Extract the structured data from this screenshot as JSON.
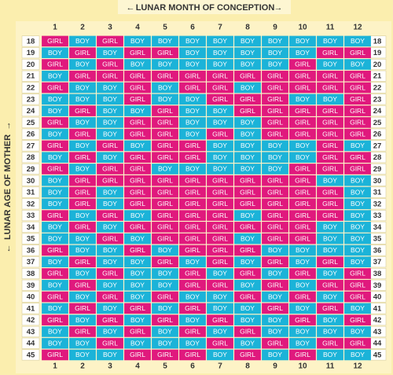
{
  "header": {
    "title": "LUNAR MONTH OF CONCEPTION"
  },
  "side_label": "LUNAR AGE OF MOTHER",
  "cell_colors": {
    "GIRL": "#e0197d",
    "BOY": "#1bb3d8"
  },
  "columns": [
    "1",
    "2",
    "3",
    "4",
    "5",
    "6",
    "7",
    "8",
    "9",
    "10",
    "11",
    "12"
  ],
  "rows": [
    {
      "age": "18",
      "cells": [
        "GIRL",
        "BOY",
        "GIRL",
        "BOY",
        "BOY",
        "BOY",
        "BOY",
        "BOY",
        "BOY",
        "BOY",
        "BOY",
        "BOY"
      ]
    },
    {
      "age": "19",
      "cells": [
        "BOY",
        "GIRL",
        "BOY",
        "GIRL",
        "GIRL",
        "BOY",
        "BOY",
        "BOY",
        "BOY",
        "BOY",
        "GIRL",
        "GIRL"
      ]
    },
    {
      "age": "20",
      "cells": [
        "GIRL",
        "BOY",
        "GIRL",
        "BOY",
        "BOY",
        "BOY",
        "BOY",
        "BOY",
        "BOY",
        "GIRL",
        "BOY",
        "BOY"
      ]
    },
    {
      "age": "21",
      "cells": [
        "BOY",
        "GIRL",
        "GIRL",
        "GIRL",
        "GIRL",
        "GIRL",
        "GIRL",
        "GIRL",
        "GIRL",
        "GIRL",
        "GIRL",
        "GIRL"
      ]
    },
    {
      "age": "22",
      "cells": [
        "GIRL",
        "BOY",
        "BOY",
        "GIRL",
        "BOY",
        "GIRL",
        "GIRL",
        "BOY",
        "GIRL",
        "GIRL",
        "GIRL",
        "GIRL"
      ]
    },
    {
      "age": "23",
      "cells": [
        "BOY",
        "BOY",
        "BOY",
        "GIRL",
        "BOY",
        "BOY",
        "GIRL",
        "GIRL",
        "GIRL",
        "BOY",
        "BOY",
        "GIRL"
      ]
    },
    {
      "age": "24",
      "cells": [
        "BOY",
        "GIRL",
        "BOY",
        "BOY",
        "GIRL",
        "BOY",
        "BOY",
        "GIRL",
        "GIRL",
        "GIRL",
        "GIRL",
        "GIRL"
      ]
    },
    {
      "age": "25",
      "cells": [
        "GIRL",
        "BOY",
        "BOY",
        "GIRL",
        "GIRL",
        "BOY",
        "BOY",
        "BOY",
        "GIRL",
        "GIRL",
        "GIRL",
        "GIRL"
      ]
    },
    {
      "age": "26",
      "cells": [
        "BOY",
        "GIRL",
        "BOY",
        "GIRL",
        "GIRL",
        "BOY",
        "GIRL",
        "BOY",
        "GIRL",
        "GIRL",
        "GIRL",
        "GIRL"
      ]
    },
    {
      "age": "27",
      "cells": [
        "GIRL",
        "BOY",
        "GIRL",
        "BOY",
        "GIRL",
        "GIRL",
        "BOY",
        "BOY",
        "BOY",
        "BOY",
        "GIRL",
        "BOY"
      ]
    },
    {
      "age": "28",
      "cells": [
        "BOY",
        "GIRL",
        "BOY",
        "GIRL",
        "GIRL",
        "GIRL",
        "BOY",
        "BOY",
        "BOY",
        "BOY",
        "GIRL",
        "GIRL"
      ]
    },
    {
      "age": "29",
      "cells": [
        "GIRL",
        "BOY",
        "GIRL",
        "GIRL",
        "BOY",
        "BOY",
        "BOY",
        "BOY",
        "BOY",
        "GIRL",
        "GIRL",
        "GIRL"
      ]
    },
    {
      "age": "30",
      "cells": [
        "BOY",
        "GIRL",
        "GIRL",
        "GIRL",
        "GIRL",
        "GIRL",
        "GIRL",
        "GIRL",
        "GIRL",
        "GIRL",
        "BOY",
        "BOY"
      ]
    },
    {
      "age": "31",
      "cells": [
        "BOY",
        "GIRL",
        "BOY",
        "GIRL",
        "GIRL",
        "GIRL",
        "GIRL",
        "GIRL",
        "GIRL",
        "GIRL",
        "GIRL",
        "BOY"
      ]
    },
    {
      "age": "32",
      "cells": [
        "BOY",
        "GIRL",
        "BOY",
        "GIRL",
        "GIRL",
        "GIRL",
        "GIRL",
        "GIRL",
        "GIRL",
        "GIRL",
        "GIRL",
        "BOY"
      ]
    },
    {
      "age": "33",
      "cells": [
        "GIRL",
        "BOY",
        "GIRL",
        "BOY",
        "GIRL",
        "GIRL",
        "GIRL",
        "BOY",
        "GIRL",
        "GIRL",
        "GIRL",
        "BOY"
      ]
    },
    {
      "age": "34",
      "cells": [
        "BOY",
        "GIRL",
        "BOY",
        "GIRL",
        "GIRL",
        "GIRL",
        "GIRL",
        "GIRL",
        "GIRL",
        "GIRL",
        "BOY",
        "BOY"
      ]
    },
    {
      "age": "35",
      "cells": [
        "BOY",
        "BOY",
        "GIRL",
        "BOY",
        "GIRL",
        "GIRL",
        "GIRL",
        "BOY",
        "GIRL",
        "GIRL",
        "BOY",
        "BOY"
      ]
    },
    {
      "age": "36",
      "cells": [
        "GIRL",
        "BOY",
        "BOY",
        "GIRL",
        "BOY",
        "GIRL",
        "GIRL",
        "GIRL",
        "BOY",
        "BOY",
        "BOY",
        "BOY"
      ]
    },
    {
      "age": "37",
      "cells": [
        "BOY",
        "GIRL",
        "BOY",
        "BOY",
        "GIRL",
        "BOY",
        "GIRL",
        "BOY",
        "GIRL",
        "BOY",
        "GIRL",
        "BOY"
      ]
    },
    {
      "age": "38",
      "cells": [
        "GIRL",
        "BOY",
        "GIRL",
        "BOY",
        "BOY",
        "GIRL",
        "BOY",
        "GIRL",
        "BOY",
        "GIRL",
        "BOY",
        "GIRL"
      ]
    },
    {
      "age": "39",
      "cells": [
        "BOY",
        "GIRL",
        "BOY",
        "BOY",
        "BOY",
        "GIRL",
        "GIRL",
        "BOY",
        "GIRL",
        "BOY",
        "GIRL",
        "GIRL"
      ]
    },
    {
      "age": "40",
      "cells": [
        "GIRL",
        "BOY",
        "GIRL",
        "BOY",
        "GIRL",
        "BOY",
        "BOY",
        "GIRL",
        "BOY",
        "GIRL",
        "BOY",
        "GIRL"
      ]
    },
    {
      "age": "41",
      "cells": [
        "BOY",
        "GIRL",
        "BOY",
        "GIRL",
        "BOY",
        "GIRL",
        "BOY",
        "BOY",
        "GIRL",
        "BOY",
        "GIRL",
        "BOY"
      ]
    },
    {
      "age": "42",
      "cells": [
        "GIRL",
        "BOY",
        "GIRL",
        "BOY",
        "GIRL",
        "BOY",
        "GIRL",
        "BOY",
        "BOY",
        "GIRL",
        "BOY",
        "GIRL"
      ]
    },
    {
      "age": "43",
      "cells": [
        "BOY",
        "GIRL",
        "BOY",
        "GIRL",
        "BOY",
        "GIRL",
        "BOY",
        "GIRL",
        "BOY",
        "BOY",
        "BOY",
        "BOY"
      ]
    },
    {
      "age": "44",
      "cells": [
        "BOY",
        "BOY",
        "GIRL",
        "BOY",
        "BOY",
        "BOY",
        "GIRL",
        "BOY",
        "GIRL",
        "BOY",
        "GIRL",
        "GIRL"
      ]
    },
    {
      "age": "45",
      "cells": [
        "GIRL",
        "BOY",
        "BOY",
        "GIRL",
        "GIRL",
        "GIRL",
        "BOY",
        "GIRL",
        "BOY",
        "GIRL",
        "BOY",
        "BOY"
      ]
    }
  ]
}
